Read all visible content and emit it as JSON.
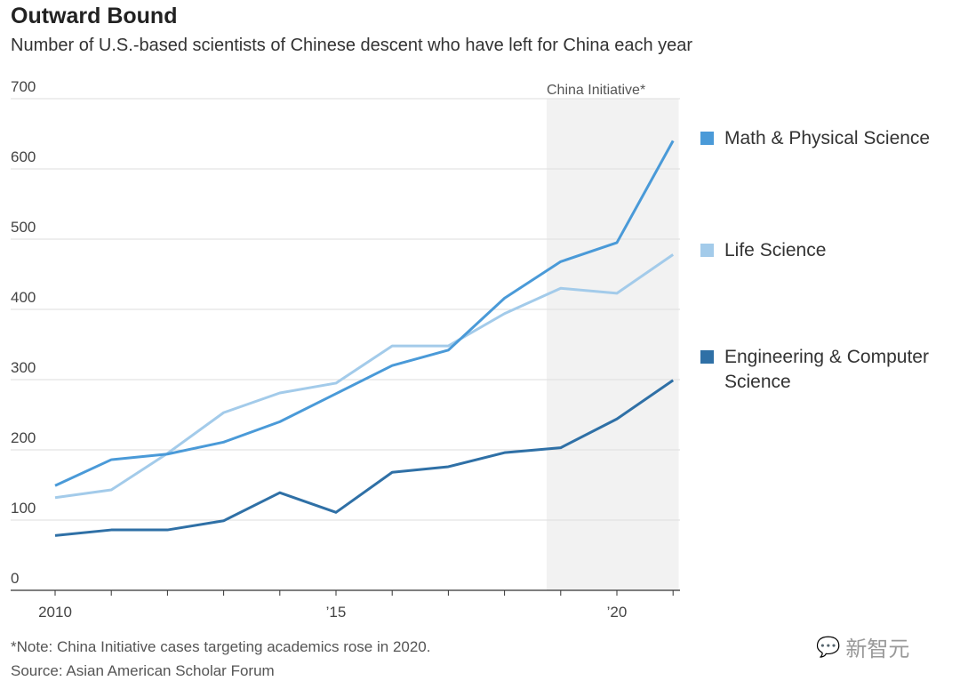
{
  "chart_data": {
    "type": "line",
    "title": "Outward Bound",
    "subtitle": "Number of U.S.-based scientists of Chinese descent who have left for China each year",
    "x": [
      2010,
      2011,
      2012,
      2013,
      2014,
      2015,
      2016,
      2017,
      2018,
      2019,
      2020,
      2021
    ],
    "xticks": [
      {
        "value": 2010,
        "label": "2010"
      },
      {
        "value": 2015,
        "label": "’15"
      },
      {
        "value": 2020,
        "label": "’20"
      }
    ],
    "ylim": [
      0,
      700
    ],
    "yticks": [
      0,
      100,
      200,
      300,
      400,
      500,
      600,
      700
    ],
    "grid": true,
    "legend_placement": "right",
    "series": [
      {
        "name": "Math & Physical Science",
        "color": "#4a9ad8",
        "values": [
          149,
          186,
          194,
          211,
          240,
          280,
          320,
          342,
          416,
          468,
          495,
          640
        ]
      },
      {
        "name": "Life Science",
        "color": "#a3cbea",
        "values": [
          132,
          143,
          195,
          253,
          281,
          295,
          348,
          348,
          394,
          430,
          423,
          478
        ]
      },
      {
        "name": "Engineering & Computer Science",
        "color": "#2f70a6",
        "values": [
          78,
          86,
          86,
          99,
          139,
          111,
          168,
          176,
          196,
          203,
          244,
          299
        ]
      }
    ],
    "annotation": {
      "label": "China Initiative*",
      "x_start": 2018.75,
      "x_end": 2021.1,
      "color": "#f2f2f2"
    }
  },
  "footer": {
    "note": "*Note: China Initiative cases targeting academics rose in 2020.",
    "source": "Source: Asian American Scholar Forum"
  },
  "watermark": "新智元"
}
